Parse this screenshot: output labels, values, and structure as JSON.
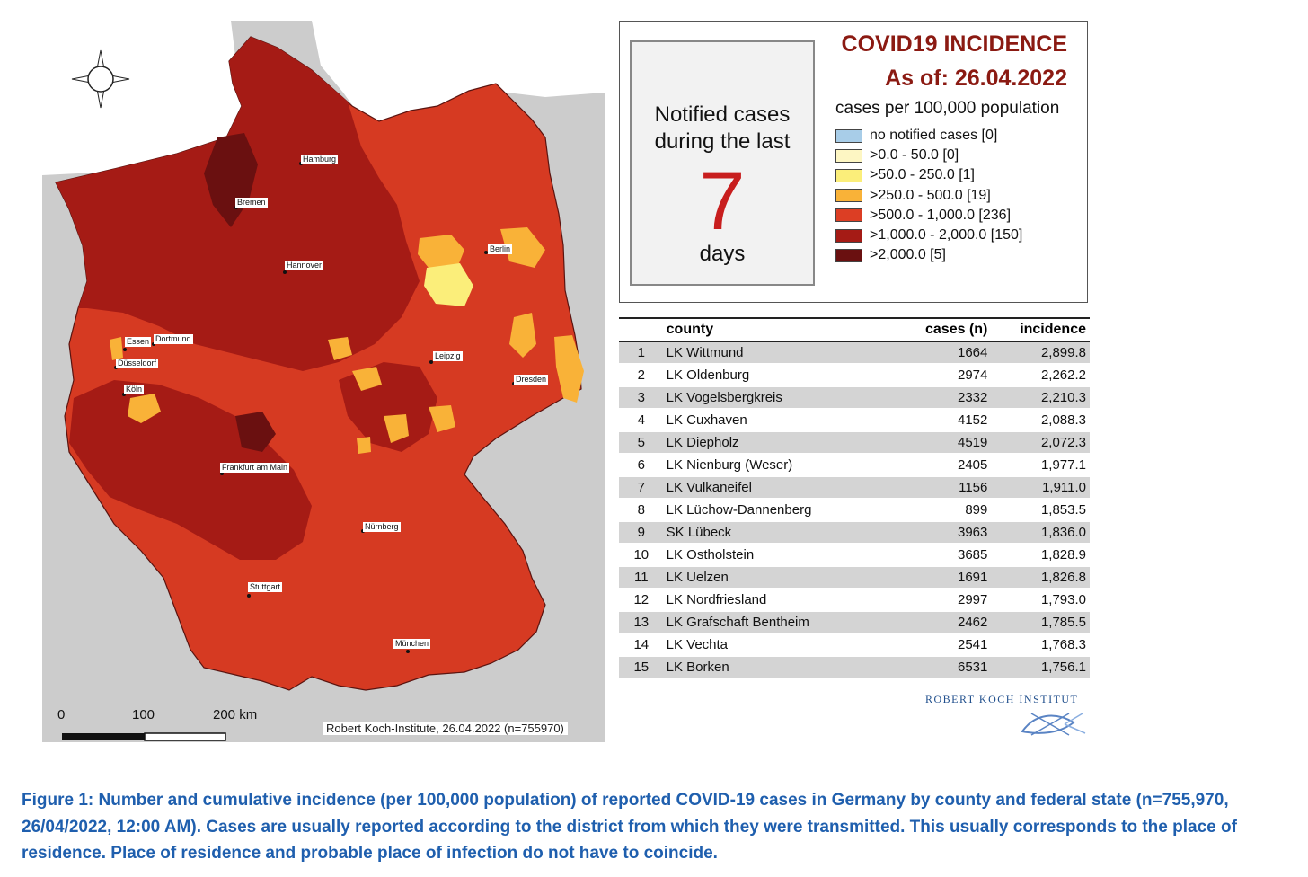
{
  "map": {
    "credit": "Robert Koch-Institute, 26.04.2022 (n=755970)",
    "scale_labels": [
      "0",
      "100",
      "200 km"
    ],
    "cities": [
      "Hamburg",
      "Bremen",
      "Hannover",
      "Berlin",
      "Essen",
      "Dortmund",
      "Düsseldorf",
      "Köln",
      "Leipzig",
      "Dresden",
      "Frankfurt am Main",
      "Nürnberg",
      "Stuttgart",
      "München"
    ]
  },
  "legend": {
    "title_line1": "COVID19 INCIDENCE",
    "title_line2": "As of: 26.04.2022",
    "days_line1": "Notified cases during the last",
    "days_number": "7",
    "days_unit": "days",
    "subtitle": "cases per 100,000 population",
    "items": [
      {
        "label": "no notified cases [0]",
        "color": "#a8cde8"
      },
      {
        "label": ">0.0 - 50.0 [0]",
        "color": "#fdf6c3"
      },
      {
        "label": ">50.0 - 250.0 [1]",
        "color": "#fbee7a"
      },
      {
        "label": ">250.0 - 500.0 [19]",
        "color": "#f9b238"
      },
      {
        "label": ">500.0 - 1,000.0 [236]",
        "color": "#dc3e24"
      },
      {
        "label": ">1,000.0 - 2,000.0 [150]",
        "color": "#a51b15"
      },
      {
        "label": ">2,000.0 [5]",
        "color": "#6a1010"
      }
    ]
  },
  "table": {
    "headers": {
      "rank": "",
      "county": "county",
      "cases": "cases (n)",
      "incidence": "incidence"
    },
    "rows": [
      {
        "rank": "1",
        "county": "LK Wittmund",
        "cases": "1664",
        "incidence": "2,899.8"
      },
      {
        "rank": "2",
        "county": "LK Oldenburg",
        "cases": "2974",
        "incidence": "2,262.2"
      },
      {
        "rank": "3",
        "county": "LK Vogelsbergkreis",
        "cases": "2332",
        "incidence": "2,210.3"
      },
      {
        "rank": "4",
        "county": "LK Cuxhaven",
        "cases": "4152",
        "incidence": "2,088.3"
      },
      {
        "rank": "5",
        "county": "LK Diepholz",
        "cases": "4519",
        "incidence": "2,072.3"
      },
      {
        "rank": "6",
        "county": "LK Nienburg (Weser)",
        "cases": "2405",
        "incidence": "1,977.1"
      },
      {
        "rank": "7",
        "county": "LK Vulkaneifel",
        "cases": "1156",
        "incidence": "1,911.0"
      },
      {
        "rank": "8",
        "county": "LK Lüchow-Dannenberg",
        "cases": "899",
        "incidence": "1,853.5"
      },
      {
        "rank": "9",
        "county": "SK Lübeck",
        "cases": "3963",
        "incidence": "1,836.0"
      },
      {
        "rank": "10",
        "county": "LK Ostholstein",
        "cases": "3685",
        "incidence": "1,828.9"
      },
      {
        "rank": "11",
        "county": "LK Uelzen",
        "cases": "1691",
        "incidence": "1,826.8"
      },
      {
        "rank": "12",
        "county": "LK Nordfriesland",
        "cases": "2997",
        "incidence": "1,793.0"
      },
      {
        "rank": "13",
        "county": "LK Grafschaft Bentheim",
        "cases": "2462",
        "incidence": "1,785.5"
      },
      {
        "rank": "14",
        "county": "LK Vechta",
        "cases": "2541",
        "incidence": "1,768.3"
      },
      {
        "rank": "15",
        "county": "LK Borken",
        "cases": "6531",
        "incidence": "1,756.1"
      }
    ]
  },
  "logo": {
    "text": "ROBERT KOCH INSTITUT"
  },
  "caption": "Figure 1: Number and cumulative incidence (per 100,000 population) of reported COVID-19 cases in Germany by county and federal state (n=755,970, 26/04/2022, 12:00 AM). Cases are usually reported according to the district from which they were transmitted. This usually corresponds to the place of residence. Place of residence and probable place of infection do not have to coincide."
}
